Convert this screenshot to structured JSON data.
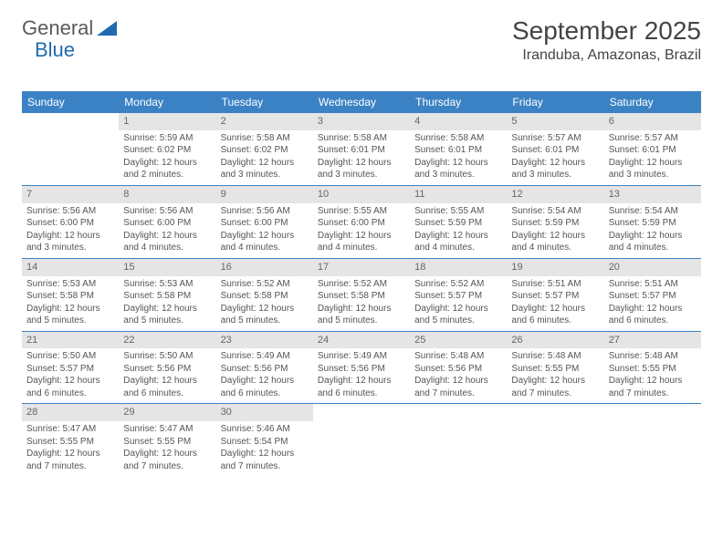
{
  "logo": {
    "text1": "General",
    "text2": "Blue"
  },
  "title": "September 2025",
  "location": "Iranduba, Amazonas, Brazil",
  "colors": {
    "header_bg": "#3b82c4",
    "header_text": "#ffffff",
    "daynum_bg": "#e5e5e5",
    "border": "#3b82c4",
    "text": "#555555",
    "logo_accent": "#1f6bb0"
  },
  "day_names": [
    "Sunday",
    "Monday",
    "Tuesday",
    "Wednesday",
    "Thursday",
    "Friday",
    "Saturday"
  ],
  "weeks": [
    [
      {
        "n": "",
        "sr": "",
        "ss": "",
        "dl": ""
      },
      {
        "n": "1",
        "sr": "Sunrise: 5:59 AM",
        "ss": "Sunset: 6:02 PM",
        "dl": "Daylight: 12 hours and 2 minutes."
      },
      {
        "n": "2",
        "sr": "Sunrise: 5:58 AM",
        "ss": "Sunset: 6:02 PM",
        "dl": "Daylight: 12 hours and 3 minutes."
      },
      {
        "n": "3",
        "sr": "Sunrise: 5:58 AM",
        "ss": "Sunset: 6:01 PM",
        "dl": "Daylight: 12 hours and 3 minutes."
      },
      {
        "n": "4",
        "sr": "Sunrise: 5:58 AM",
        "ss": "Sunset: 6:01 PM",
        "dl": "Daylight: 12 hours and 3 minutes."
      },
      {
        "n": "5",
        "sr": "Sunrise: 5:57 AM",
        "ss": "Sunset: 6:01 PM",
        "dl": "Daylight: 12 hours and 3 minutes."
      },
      {
        "n": "6",
        "sr": "Sunrise: 5:57 AM",
        "ss": "Sunset: 6:01 PM",
        "dl": "Daylight: 12 hours and 3 minutes."
      }
    ],
    [
      {
        "n": "7",
        "sr": "Sunrise: 5:56 AM",
        "ss": "Sunset: 6:00 PM",
        "dl": "Daylight: 12 hours and 3 minutes."
      },
      {
        "n": "8",
        "sr": "Sunrise: 5:56 AM",
        "ss": "Sunset: 6:00 PM",
        "dl": "Daylight: 12 hours and 4 minutes."
      },
      {
        "n": "9",
        "sr": "Sunrise: 5:56 AM",
        "ss": "Sunset: 6:00 PM",
        "dl": "Daylight: 12 hours and 4 minutes."
      },
      {
        "n": "10",
        "sr": "Sunrise: 5:55 AM",
        "ss": "Sunset: 6:00 PM",
        "dl": "Daylight: 12 hours and 4 minutes."
      },
      {
        "n": "11",
        "sr": "Sunrise: 5:55 AM",
        "ss": "Sunset: 5:59 PM",
        "dl": "Daylight: 12 hours and 4 minutes."
      },
      {
        "n": "12",
        "sr": "Sunrise: 5:54 AM",
        "ss": "Sunset: 5:59 PM",
        "dl": "Daylight: 12 hours and 4 minutes."
      },
      {
        "n": "13",
        "sr": "Sunrise: 5:54 AM",
        "ss": "Sunset: 5:59 PM",
        "dl": "Daylight: 12 hours and 4 minutes."
      }
    ],
    [
      {
        "n": "14",
        "sr": "Sunrise: 5:53 AM",
        "ss": "Sunset: 5:58 PM",
        "dl": "Daylight: 12 hours and 5 minutes."
      },
      {
        "n": "15",
        "sr": "Sunrise: 5:53 AM",
        "ss": "Sunset: 5:58 PM",
        "dl": "Daylight: 12 hours and 5 minutes."
      },
      {
        "n": "16",
        "sr": "Sunrise: 5:52 AM",
        "ss": "Sunset: 5:58 PM",
        "dl": "Daylight: 12 hours and 5 minutes."
      },
      {
        "n": "17",
        "sr": "Sunrise: 5:52 AM",
        "ss": "Sunset: 5:58 PM",
        "dl": "Daylight: 12 hours and 5 minutes."
      },
      {
        "n": "18",
        "sr": "Sunrise: 5:52 AM",
        "ss": "Sunset: 5:57 PM",
        "dl": "Daylight: 12 hours and 5 minutes."
      },
      {
        "n": "19",
        "sr": "Sunrise: 5:51 AM",
        "ss": "Sunset: 5:57 PM",
        "dl": "Daylight: 12 hours and 6 minutes."
      },
      {
        "n": "20",
        "sr": "Sunrise: 5:51 AM",
        "ss": "Sunset: 5:57 PM",
        "dl": "Daylight: 12 hours and 6 minutes."
      }
    ],
    [
      {
        "n": "21",
        "sr": "Sunrise: 5:50 AM",
        "ss": "Sunset: 5:57 PM",
        "dl": "Daylight: 12 hours and 6 minutes."
      },
      {
        "n": "22",
        "sr": "Sunrise: 5:50 AM",
        "ss": "Sunset: 5:56 PM",
        "dl": "Daylight: 12 hours and 6 minutes."
      },
      {
        "n": "23",
        "sr": "Sunrise: 5:49 AM",
        "ss": "Sunset: 5:56 PM",
        "dl": "Daylight: 12 hours and 6 minutes."
      },
      {
        "n": "24",
        "sr": "Sunrise: 5:49 AM",
        "ss": "Sunset: 5:56 PM",
        "dl": "Daylight: 12 hours and 6 minutes."
      },
      {
        "n": "25",
        "sr": "Sunrise: 5:48 AM",
        "ss": "Sunset: 5:56 PM",
        "dl": "Daylight: 12 hours and 7 minutes."
      },
      {
        "n": "26",
        "sr": "Sunrise: 5:48 AM",
        "ss": "Sunset: 5:55 PM",
        "dl": "Daylight: 12 hours and 7 minutes."
      },
      {
        "n": "27",
        "sr": "Sunrise: 5:48 AM",
        "ss": "Sunset: 5:55 PM",
        "dl": "Daylight: 12 hours and 7 minutes."
      }
    ],
    [
      {
        "n": "28",
        "sr": "Sunrise: 5:47 AM",
        "ss": "Sunset: 5:55 PM",
        "dl": "Daylight: 12 hours and 7 minutes."
      },
      {
        "n": "29",
        "sr": "Sunrise: 5:47 AM",
        "ss": "Sunset: 5:55 PM",
        "dl": "Daylight: 12 hours and 7 minutes."
      },
      {
        "n": "30",
        "sr": "Sunrise: 5:46 AM",
        "ss": "Sunset: 5:54 PM",
        "dl": "Daylight: 12 hours and 7 minutes."
      },
      {
        "n": "",
        "sr": "",
        "ss": "",
        "dl": ""
      },
      {
        "n": "",
        "sr": "",
        "ss": "",
        "dl": ""
      },
      {
        "n": "",
        "sr": "",
        "ss": "",
        "dl": ""
      },
      {
        "n": "",
        "sr": "",
        "ss": "",
        "dl": ""
      }
    ]
  ]
}
